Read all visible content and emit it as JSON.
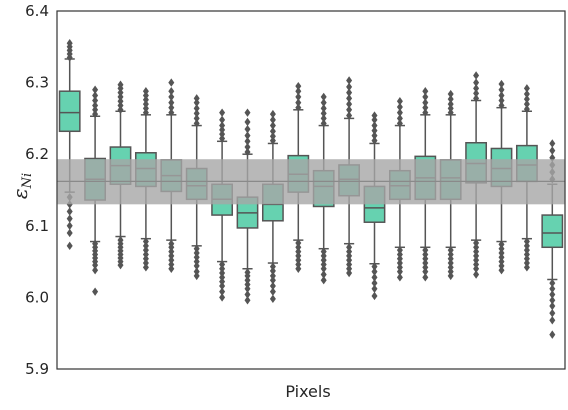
{
  "chart_data": {
    "type": "box",
    "xlabel": "Pixels",
    "ylabel": {
      "main": "ε",
      "sub": "Ni"
    },
    "ylim": [
      5.9,
      6.4
    ],
    "yticks": [
      "5.9",
      "6.0",
      "6.1",
      "6.2",
      "6.3",
      "6.4"
    ],
    "band": {
      "low": 6.13,
      "high": 6.193,
      "line": 6.162
    },
    "colors": {
      "box_fill": "#66d2b0",
      "edge": "#555555",
      "band": "#a6a6a6",
      "band_line": "#8a8a8a",
      "frame": "#333333"
    },
    "boxes": [
      {
        "q1": 6.232,
        "median": 6.258,
        "q3": 6.288,
        "wlow": 6.147,
        "whigh": 6.333,
        "outliers_low": [
          6.14,
          6.13,
          6.12,
          6.11,
          6.1,
          6.09,
          6.072
        ],
        "outliers_high": [
          6.335,
          6.34,
          6.345,
          6.35,
          6.355
        ]
      },
      {
        "q1": 6.136,
        "median": 6.165,
        "q3": 6.194,
        "wlow": 6.078,
        "whigh": 6.253,
        "outliers_low": [
          6.075,
          6.07,
          6.065,
          6.06,
          6.055,
          6.05,
          6.045,
          6.038,
          6.008
        ],
        "outliers_high": [
          6.256,
          6.262,
          6.268,
          6.275,
          6.282,
          6.29
        ]
      },
      {
        "q1": 6.158,
        "median": 6.184,
        "q3": 6.21,
        "wlow": 6.085,
        "whigh": 6.26,
        "outliers_low": [
          6.08,
          6.075,
          6.07,
          6.065,
          6.06,
          6.055,
          6.05,
          6.045
        ],
        "outliers_high": [
          6.262,
          6.268,
          6.274,
          6.28,
          6.286,
          6.292,
          6.297
        ]
      },
      {
        "q1": 6.155,
        "median": 6.18,
        "q3": 6.202,
        "wlow": 6.082,
        "whigh": 6.255,
        "outliers_low": [
          6.078,
          6.072,
          6.066,
          6.06,
          6.054,
          6.048,
          6.042
        ],
        "outliers_high": [
          6.258,
          6.264,
          6.27,
          6.276,
          6.282,
          6.288
        ]
      },
      {
        "q1": 6.148,
        "median": 6.17,
        "q3": 6.192,
        "wlow": 6.08,
        "whigh": 6.255,
        "outliers_low": [
          6.075,
          6.07,
          6.064,
          6.058,
          6.052,
          6.046,
          6.04
        ],
        "outliers_high": [
          6.258,
          6.265,
          6.272,
          6.28,
          6.288,
          6.3
        ]
      },
      {
        "q1": 6.137,
        "median": 6.156,
        "q3": 6.18,
        "wlow": 6.072,
        "whigh": 6.24,
        "outliers_low": [
          6.068,
          6.062,
          6.056,
          6.05,
          6.044,
          6.036,
          6.03
        ],
        "outliers_high": [
          6.243,
          6.25,
          6.257,
          6.264,
          6.272,
          6.278
        ]
      },
      {
        "q1": 6.115,
        "median": 6.137,
        "q3": 6.158,
        "wlow": 6.05,
        "whigh": 6.218,
        "outliers_low": [
          6.046,
          6.04,
          6.034,
          6.028,
          6.022,
          6.016,
          6.008,
          6.0
        ],
        "outliers_high": [
          6.222,
          6.228,
          6.234,
          6.24,
          6.248,
          6.258
        ]
      },
      {
        "q1": 6.097,
        "median": 6.118,
        "q3": 6.14,
        "wlow": 6.04,
        "whigh": 6.2,
        "outliers_low": [
          6.035,
          6.03,
          6.024,
          6.018,
          6.012,
          6.004,
          5.996
        ],
        "outliers_high": [
          6.203,
          6.21,
          6.218,
          6.226,
          6.235,
          6.245,
          6.258
        ]
      },
      {
        "q1": 6.107,
        "median": 6.13,
        "q3": 6.158,
        "wlow": 6.048,
        "whigh": 6.215,
        "outliers_low": [
          6.043,
          6.037,
          6.03,
          6.024,
          6.016,
          6.008,
          5.998
        ],
        "outliers_high": [
          6.219,
          6.225,
          6.232,
          6.24,
          6.248,
          6.256
        ]
      },
      {
        "q1": 6.147,
        "median": 6.172,
        "q3": 6.198,
        "wlow": 6.08,
        "whigh": 6.262,
        "outliers_low": [
          6.076,
          6.07,
          6.064,
          6.058,
          6.052,
          6.046,
          6.04
        ],
        "outliers_high": [
          6.265,
          6.272,
          6.28,
          6.288,
          6.295
        ]
      },
      {
        "q1": 6.127,
        "median": 6.155,
        "q3": 6.177,
        "wlow": 6.068,
        "whigh": 6.24,
        "outliers_low": [
          6.064,
          6.058,
          6.052,
          6.046,
          6.04,
          6.032,
          6.024
        ],
        "outliers_high": [
          6.243,
          6.25,
          6.257,
          6.264,
          6.272,
          6.28
        ]
      },
      {
        "q1": 6.142,
        "median": 6.165,
        "q3": 6.185,
        "wlow": 6.075,
        "whigh": 6.25,
        "outliers_low": [
          6.07,
          6.064,
          6.058,
          6.052,
          6.046,
          6.04,
          6.034
        ],
        "outliers_high": [
          6.254,
          6.262,
          6.27,
          6.278,
          6.286,
          6.294,
          6.303
        ]
      },
      {
        "q1": 6.105,
        "median": 6.125,
        "q3": 6.155,
        "wlow": 6.047,
        "whigh": 6.215,
        "outliers_low": [
          6.043,
          6.036,
          6.028,
          6.02,
          6.012,
          6.002
        ],
        "outliers_high": [
          6.219,
          6.226,
          6.233,
          6.24,
          6.248,
          6.254
        ]
      },
      {
        "q1": 6.137,
        "median": 6.156,
        "q3": 6.177,
        "wlow": 6.07,
        "whigh": 6.24,
        "outliers_low": [
          6.066,
          6.06,
          6.054,
          6.048,
          6.042,
          6.036,
          6.028
        ],
        "outliers_high": [
          6.243,
          6.25,
          6.258,
          6.266,
          6.274
        ]
      },
      {
        "q1": 6.137,
        "median": 6.167,
        "q3": 6.197,
        "wlow": 6.07,
        "whigh": 6.255,
        "outliers_low": [
          6.066,
          6.06,
          6.054,
          6.048,
          6.042,
          6.036,
          6.028
        ],
        "outliers_high": [
          6.258,
          6.265,
          6.272,
          6.28,
          6.288
        ]
      },
      {
        "q1": 6.137,
        "median": 6.167,
        "q3": 6.192,
        "wlow": 6.07,
        "whigh": 6.255,
        "outliers_low": [
          6.066,
          6.06,
          6.054,
          6.048,
          6.042,
          6.036,
          6.03
        ],
        "outliers_high": [
          6.258,
          6.264,
          6.27,
          6.277,
          6.284
        ]
      },
      {
        "q1": 6.16,
        "median": 6.187,
        "q3": 6.216,
        "wlow": 6.08,
        "whigh": 6.275,
        "outliers_low": [
          6.076,
          6.07,
          6.064,
          6.058,
          6.052,
          6.046,
          6.04,
          6.032
        ],
        "outliers_high": [
          6.278,
          6.285,
          6.292,
          6.3,
          6.31
        ]
      },
      {
        "q1": 6.155,
        "median": 6.18,
        "q3": 6.208,
        "wlow": 6.078,
        "whigh": 6.265,
        "outliers_low": [
          6.074,
          6.068,
          6.062,
          6.056,
          6.05,
          6.044,
          6.038
        ],
        "outliers_high": [
          6.268,
          6.275,
          6.282,
          6.29,
          6.298
        ]
      },
      {
        "q1": 6.162,
        "median": 6.185,
        "q3": 6.212,
        "wlow": 6.082,
        "whigh": 6.26,
        "outliers_low": [
          6.078,
          6.072,
          6.066,
          6.06,
          6.054,
          6.048,
          6.042
        ],
        "outliers_high": [
          6.263,
          6.27,
          6.277,
          6.284,
          6.292
        ]
      },
      {
        "q1": 6.07,
        "median": 6.09,
        "q3": 6.115,
        "wlow": 6.025,
        "whigh": 6.158,
        "outliers_low": [
          6.02,
          6.012,
          6.004,
          5.996,
          5.988,
          5.978,
          5.968,
          5.948
        ],
        "outliers_high": [
          6.165,
          6.175,
          6.185,
          6.195,
          6.205,
          6.215
        ]
      }
    ]
  }
}
